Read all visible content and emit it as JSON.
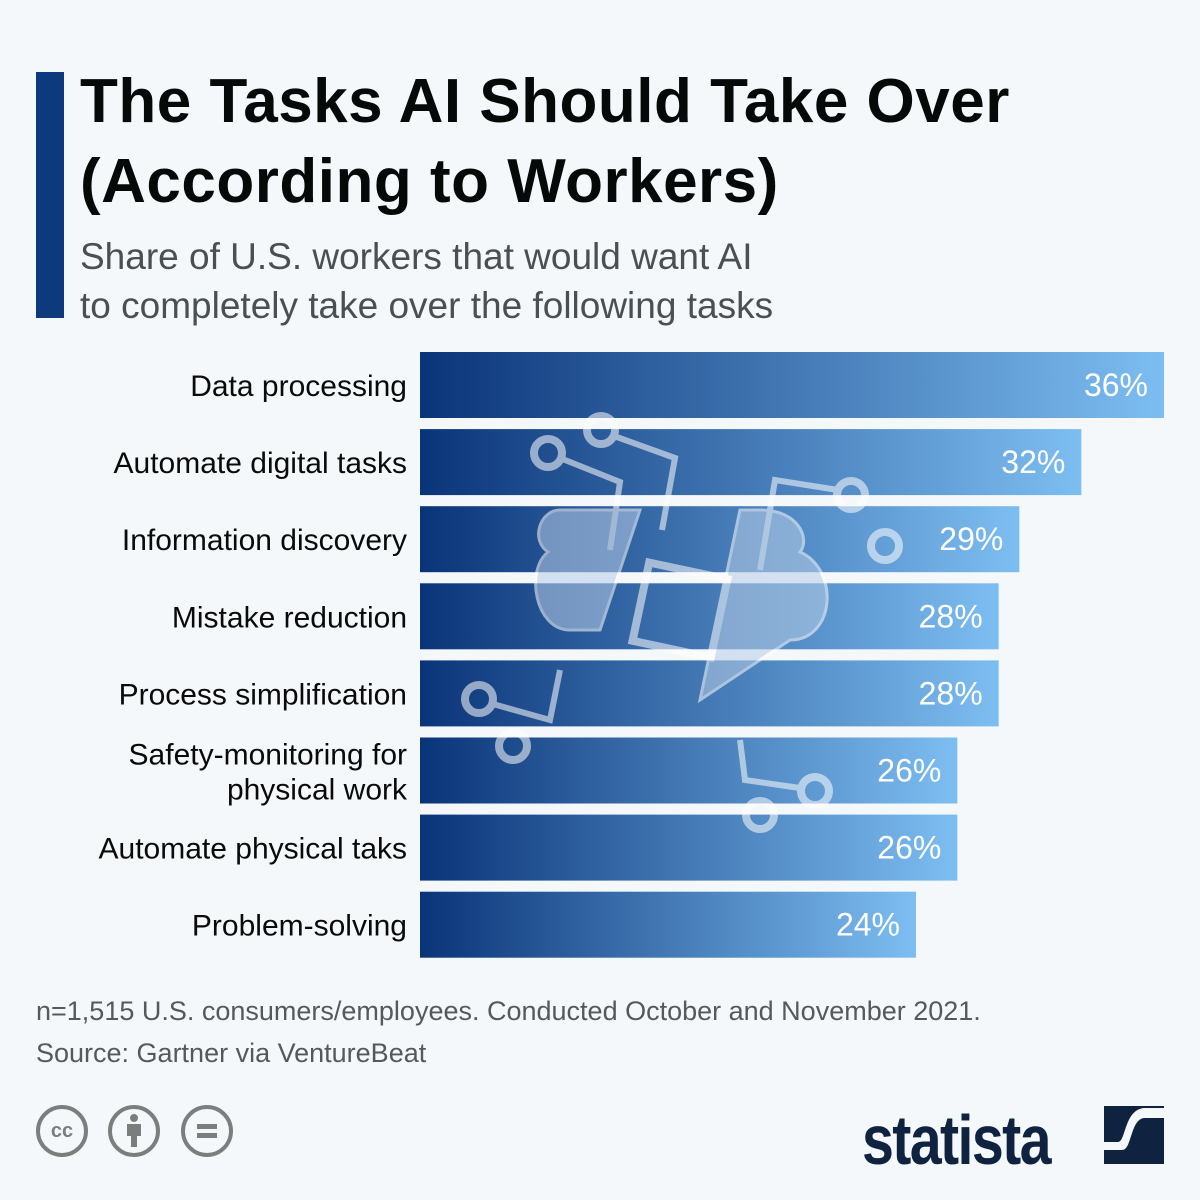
{
  "header": {
    "title_line1": "The Tasks AI Should Take Over",
    "title_line2": "(According to Workers)",
    "subtitle_line1": "Share of U.S. workers that would want AI",
    "subtitle_line2": "to completely take over the following tasks"
  },
  "chart_data": {
    "type": "bar",
    "orientation": "horizontal",
    "categories": [
      "Data processing",
      "Automate digital tasks",
      "Information discovery",
      "Mistake reduction",
      "Process simplification",
      "Safety-monitoring for physical work",
      "Automate physical taks",
      "Problem-solving"
    ],
    "category_lines": [
      [
        "Data processing"
      ],
      [
        "Automate digital tasks"
      ],
      [
        "Information discovery"
      ],
      [
        "Mistake reduction"
      ],
      [
        "Process simplification"
      ],
      [
        "Safety-monitoring for",
        "physical work"
      ],
      [
        "Automate physical taks"
      ],
      [
        "Problem-solving"
      ]
    ],
    "values": [
      36,
      32,
      29,
      28,
      28,
      26,
      26,
      24
    ],
    "value_labels": [
      "36%",
      "32%",
      "29%",
      "28%",
      "28%",
      "26%",
      "26%",
      "24%"
    ],
    "unit": "%",
    "xlim": [
      0,
      36
    ],
    "grid": false,
    "colors": {
      "gradient_start": "#0a3478",
      "gradient_end": "#7dbef2",
      "label": "#ffffff"
    }
  },
  "footer": {
    "note": "n=1,515 U.S. consumers/employees. Conducted October and November 2021.",
    "source": "Source: Gartner via VentureBeat"
  },
  "license_icons": [
    "cc-icon",
    "attribution-icon",
    "no-derivatives-icon"
  ],
  "brand": {
    "name": "statista",
    "color": "#0f2340"
  }
}
